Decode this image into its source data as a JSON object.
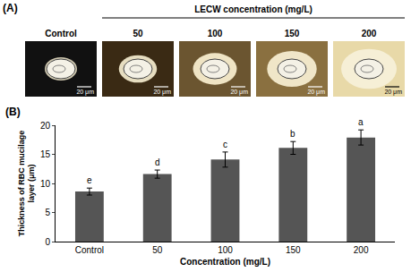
{
  "panel_a": {
    "label": "(A)",
    "header": "LECW concentration (mg/L)",
    "images": [
      {
        "label": "Control",
        "scale_bar": "20 μm"
      },
      {
        "label": "50",
        "scale_bar": "20 μm"
      },
      {
        "label": "100",
        "scale_bar": "20 μm"
      },
      {
        "label": "150",
        "scale_bar": "20 μm"
      },
      {
        "label": "200",
        "scale_bar": "20 μm"
      }
    ]
  },
  "chart_data": {
    "type": "bar",
    "panel_label": "(B)",
    "x_label": "Concentration (mg/L)",
    "y_label": [
      "Thickness of RBC mucilage",
      "layer (μm)"
    ],
    "categories": [
      "Control",
      "50",
      "100",
      "150",
      "200"
    ],
    "values": [
      8.6,
      11.6,
      14.1,
      16.1,
      17.9
    ],
    "error": [
      0.6,
      0.7,
      1.3,
      1.1,
      1.3
    ],
    "annotations": [
      "e",
      "d",
      "c",
      "b",
      "a"
    ],
    "color": "#555555",
    "ylim": [
      0,
      20
    ],
    "yticks": [
      0,
      5,
      10,
      15,
      20
    ],
    "grid": false
  }
}
